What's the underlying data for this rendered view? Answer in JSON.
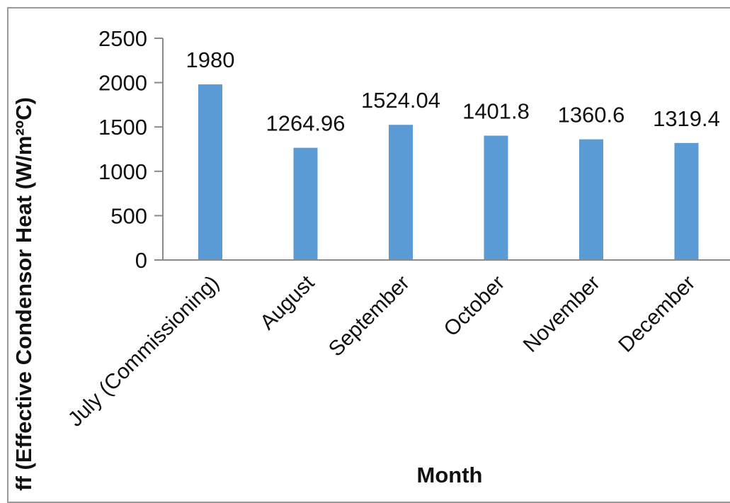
{
  "chart_data": {
    "type": "bar",
    "title": "",
    "xlabel": "Month",
    "ylabel": "ff (Effective Condensor Heat (W/m²ºC)",
    "ylim": [
      0,
      2500
    ],
    "yticks": [
      0,
      500,
      1000,
      1500,
      2000,
      2500
    ],
    "grid": false,
    "legend": "none",
    "bar_color": "#5b9bd5",
    "categories": [
      "July (Commissioning)",
      "August",
      "September",
      "October",
      "November",
      "December"
    ],
    "values": [
      1980,
      1264.96,
      1524.04,
      1401.8,
      1360.6,
      1319.4
    ],
    "value_labels": [
      "1980",
      "1264.96",
      "1524.04",
      "1401.8",
      "1360.6",
      "1319.4"
    ]
  }
}
